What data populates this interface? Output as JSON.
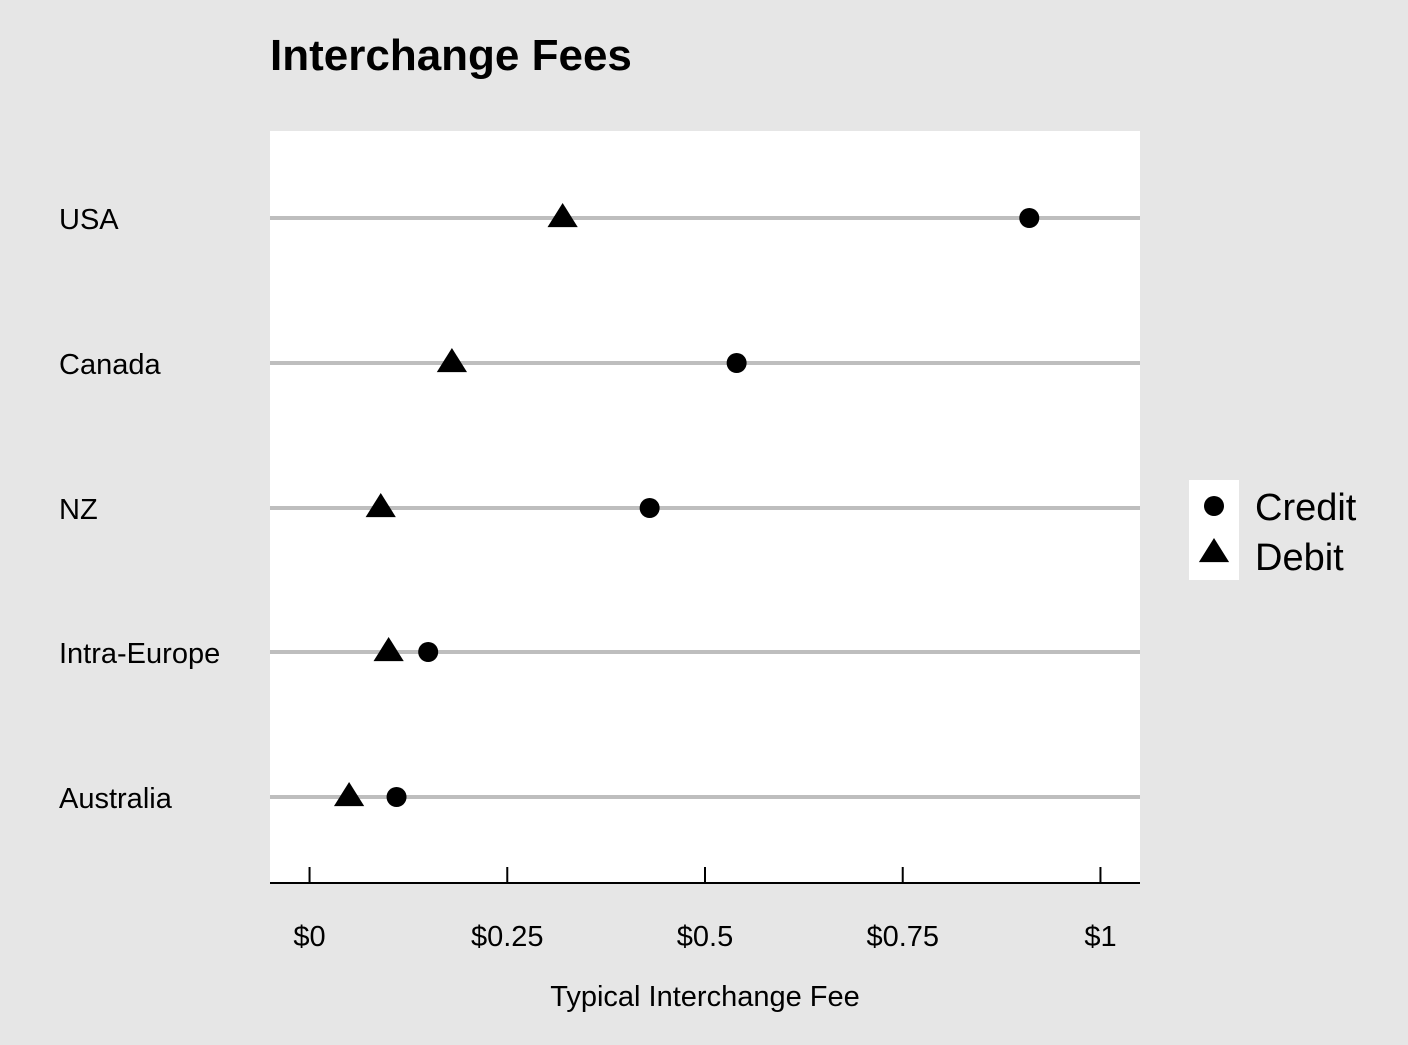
{
  "chart_data": {
    "type": "scatter",
    "title": "Interchange Fees",
    "xlabel": "Typical Interchange Fee",
    "ylabel": "",
    "xlim": [
      -0.05,
      1.05
    ],
    "x_ticks": [
      0,
      0.25,
      0.5,
      0.75,
      1
    ],
    "x_tick_labels": [
      "$0",
      "$0.25",
      "$0.5",
      "$0.75",
      "$1"
    ],
    "categories": [
      "USA",
      "Canada",
      "NZ",
      "Intra-Europe",
      "Australia"
    ],
    "series": [
      {
        "name": "Credit",
        "marker": "circle",
        "values": [
          0.91,
          0.54,
          0.43,
          0.15,
          0.11
        ]
      },
      {
        "name": "Debit",
        "marker": "triangle",
        "values": [
          0.32,
          0.18,
          0.09,
          0.1,
          0.05
        ]
      }
    ],
    "legend_position": "right",
    "grid": "horizontal",
    "colors": {
      "background": "#e6e6e6",
      "panel": "#ffffff",
      "gridline": "#bebebe",
      "marker": "#000000"
    }
  }
}
